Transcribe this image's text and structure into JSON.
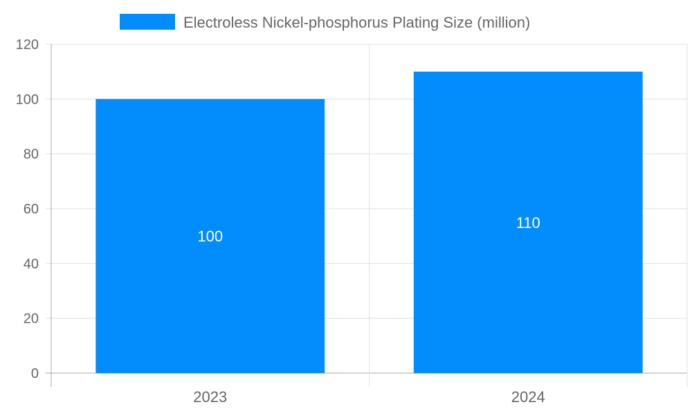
{
  "chart_data": {
    "type": "bar",
    "categories": [
      "2023",
      "2024"
    ],
    "series": [
      {
        "name": "Electroless Nickel-phosphorus Plating Size (million)",
        "values": [
          100,
          110
        ],
        "color": "#038cfc"
      }
    ],
    "data_labels": [
      "100",
      "110"
    ],
    "title": "",
    "xlabel": "",
    "ylabel": "",
    "ylim": [
      0,
      120
    ],
    "yticks": [
      0,
      20,
      40,
      60,
      80,
      100,
      120
    ],
    "grid": true,
    "legend_position": "top"
  }
}
